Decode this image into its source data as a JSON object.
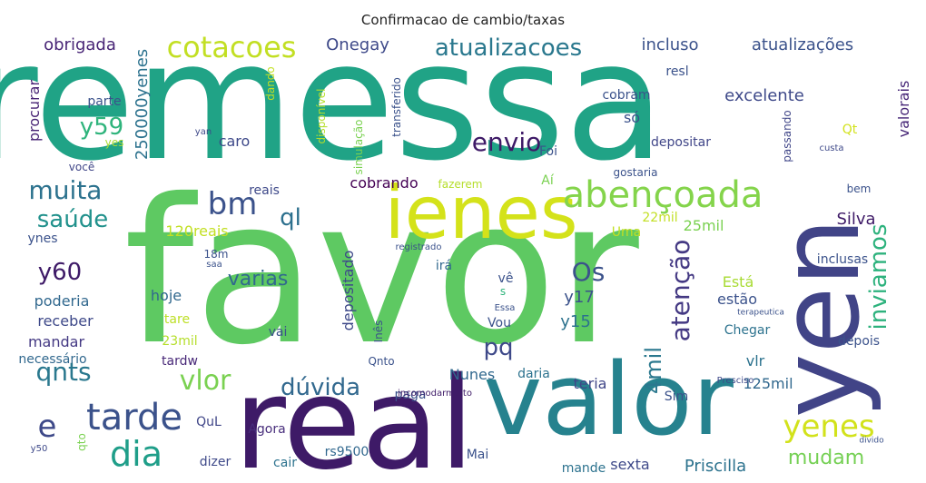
{
  "title": "Confirmacao de cambio/taxas",
  "words": [
    {
      "text": "remessa",
      "weight": 180,
      "color": "#20a386",
      "rotate": 0
    },
    {
      "text": "favor",
      "weight": 220,
      "color": "#5ec962",
      "rotate": 0
    },
    {
      "text": "real",
      "weight": 140,
      "color": "#3e1a67",
      "rotate": 0
    },
    {
      "text": "valor",
      "weight": 110,
      "color": "#26828e",
      "rotate": 0
    },
    {
      "text": "yen",
      "weight": 120,
      "color": "#414487",
      "rotate": -90
    },
    {
      "text": "ienes",
      "weight": 80,
      "color": "#d4e21a",
      "rotate": 0
    },
    {
      "text": "abençoada",
      "weight": 40,
      "color": "#84d44b",
      "rotate": 0
    },
    {
      "text": "cotacoes",
      "weight": 32,
      "color": "#c2df23",
      "rotate": 0
    },
    {
      "text": "atualizacoes",
      "weight": 26,
      "color": "#2a788e",
      "rotate": 0
    },
    {
      "text": "envio",
      "weight": 28,
      "color": "#3e1a67",
      "rotate": 0
    },
    {
      "text": "bm",
      "weight": 34,
      "color": "#3b528b",
      "rotate": 0
    },
    {
      "text": "muita",
      "weight": 28,
      "color": "#2c728e",
      "rotate": 0
    },
    {
      "text": "saúde",
      "weight": 26,
      "color": "#21918c",
      "rotate": 0
    },
    {
      "text": "y59",
      "weight": 26,
      "color": "#2fb47c",
      "rotate": 0
    },
    {
      "text": "y60",
      "weight": 26,
      "color": "#3e1a67",
      "rotate": 0
    },
    {
      "text": "ql",
      "weight": 26,
      "color": "#2d708e",
      "rotate": 0
    },
    {
      "text": "varias",
      "weight": 22,
      "color": "#31688e",
      "rotate": 0
    },
    {
      "text": "Os",
      "weight": 28,
      "color": "#3b528b",
      "rotate": 0
    },
    {
      "text": "pq",
      "weight": 26,
      "color": "#3e4989",
      "rotate": 0
    },
    {
      "text": "atenção",
      "weight": 28,
      "color": "#443983",
      "rotate": -90
    },
    {
      "text": "inviamos",
      "weight": 26,
      "color": "#2db27d",
      "rotate": -90
    },
    {
      "text": "qnts",
      "weight": 28,
      "color": "#2a788e",
      "rotate": 0
    },
    {
      "text": "vlor",
      "weight": 30,
      "color": "#7ad151",
      "rotate": 0
    },
    {
      "text": "dúvida",
      "weight": 26,
      "color": "#31688e",
      "rotate": 0
    },
    {
      "text": "tarde",
      "weight": 40,
      "color": "#3b528b",
      "rotate": 0
    },
    {
      "text": "e",
      "weight": 34,
      "color": "#3e4989",
      "rotate": 0
    },
    {
      "text": "dia",
      "weight": 38,
      "color": "#1f9e89",
      "rotate": 0
    },
    {
      "text": "yenes",
      "weight": 34,
      "color": "#d2e21b",
      "rotate": 0
    },
    {
      "text": "mudam",
      "weight": 22,
      "color": "#75d054",
      "rotate": 0
    },
    {
      "text": "4mil",
      "weight": 24,
      "color": "#2a788e",
      "rotate": -90
    },
    {
      "text": "obrigada",
      "weight": 18,
      "color": "#482576",
      "rotate": 0
    },
    {
      "text": "Onegay",
      "weight": 18,
      "color": "#3e4989",
      "rotate": 0
    },
    {
      "text": "incluso",
      "weight": 18,
      "color": "#3b528b",
      "rotate": 0
    },
    {
      "text": "atualizações",
      "weight": 18,
      "color": "#3b528b",
      "rotate": 0
    },
    {
      "text": "valorais",
      "weight": 16,
      "color": "#482878",
      "rotate": -90
    },
    {
      "text": "excelente",
      "weight": 18,
      "color": "#3e4989",
      "rotate": 0
    },
    {
      "text": "procurar",
      "weight": 16,
      "color": "#482475",
      "rotate": -90
    },
    {
      "text": "250000yenes",
      "weight": 18,
      "color": "#2c728e",
      "rotate": -90
    },
    {
      "text": "caro",
      "weight": 16,
      "color": "#3e4989",
      "rotate": 0
    },
    {
      "text": "cobrando",
      "weight": 16,
      "color": "#440154",
      "rotate": 0
    },
    {
      "text": "reais",
      "weight": 14,
      "color": "#3e4989",
      "rotate": 0
    },
    {
      "text": "120reais",
      "weight": 16,
      "color": "#c2df23",
      "rotate": 0
    },
    {
      "text": "Silva",
      "weight": 18,
      "color": "#3e1a67",
      "rotate": 0
    },
    {
      "text": "25mil",
      "weight": 16,
      "color": "#7ad151",
      "rotate": 0
    },
    {
      "text": "hoje",
      "weight": 16,
      "color": "#31688e",
      "rotate": 0
    },
    {
      "text": "poderia",
      "weight": 16,
      "color": "#31688e",
      "rotate": 0
    },
    {
      "text": "receber",
      "weight": 16,
      "color": "#3e4989",
      "rotate": 0
    },
    {
      "text": "mandar",
      "weight": 16,
      "color": "#443983",
      "rotate": 0
    },
    {
      "text": "tare",
      "weight": 14,
      "color": "#bddf26",
      "rotate": 0
    },
    {
      "text": "23mil",
      "weight": 14,
      "color": "#b5de2b",
      "rotate": 0
    },
    {
      "text": "tardw",
      "weight": 14,
      "color": "#482878",
      "rotate": 0
    },
    {
      "text": "estão",
      "weight": 16,
      "color": "#3b528b",
      "rotate": 0
    },
    {
      "text": "Está",
      "weight": 16,
      "color": "#a8db34",
      "rotate": 0
    },
    {
      "text": "y17",
      "weight": 18,
      "color": "#3b528b",
      "rotate": 0
    },
    {
      "text": "y15",
      "weight": 18,
      "color": "#2c728e",
      "rotate": 0
    },
    {
      "text": "depositado",
      "weight": 16,
      "color": "#3e4989",
      "rotate": -90
    },
    {
      "text": "irá",
      "weight": 14,
      "color": "#31688e",
      "rotate": 0
    },
    {
      "text": "Nunes",
      "weight": 16,
      "color": "#31688e",
      "rotate": 0
    },
    {
      "text": "paga",
      "weight": 14,
      "color": "#3b528b",
      "rotate": 0
    },
    {
      "text": "teria",
      "weight": 16,
      "color": "#404688",
      "rotate": 0
    },
    {
      "text": "vlr",
      "weight": 16,
      "color": "#2c728e",
      "rotate": 0
    },
    {
      "text": "125mil",
      "weight": 16,
      "color": "#31688e",
      "rotate": 0
    },
    {
      "text": "QuL",
      "weight": 14,
      "color": "#404688",
      "rotate": 0
    },
    {
      "text": "Agora",
      "weight": 14,
      "color": "#472d7b",
      "rotate": 0
    },
    {
      "text": "rs9500",
      "weight": 14,
      "color": "#31688e",
      "rotate": 0
    },
    {
      "text": "cair",
      "weight": 14,
      "color": "#2c728e",
      "rotate": 0
    },
    {
      "text": "dizer",
      "weight": 14,
      "color": "#3e4989",
      "rotate": 0
    },
    {
      "text": "Mai",
      "weight": 14,
      "color": "#3b528b",
      "rotate": 0
    },
    {
      "text": "sexta",
      "weight": 16,
      "color": "#3e4989",
      "rotate": 0
    },
    {
      "text": "Priscilla",
      "weight": 18,
      "color": "#2c728e",
      "rotate": 0
    },
    {
      "text": "mande",
      "weight": 14,
      "color": "#2c728e",
      "rotate": 0
    },
    {
      "text": "só",
      "weight": 16,
      "color": "#3b528b",
      "rotate": 0
    },
    {
      "text": "cobram",
      "weight": 14,
      "color": "#3b528b",
      "rotate": 0
    },
    {
      "text": "depositar",
      "weight": 14,
      "color": "#404688",
      "rotate": 0
    },
    {
      "text": "parte",
      "weight": 14,
      "color": "#3b528b",
      "rotate": 0
    },
    {
      "text": "você",
      "weight": 12,
      "color": "#404688",
      "rotate": 0
    },
    {
      "text": "yes",
      "weight": 12,
      "color": "#a8db34",
      "rotate": 0
    },
    {
      "text": "fazerem",
      "weight": 12,
      "color": "#b5de2b",
      "rotate": 0
    },
    {
      "text": "Aí",
      "weight": 14,
      "color": "#7ad151",
      "rotate": 0
    },
    {
      "text": "Foi",
      "weight": 14,
      "color": "#3b528b",
      "rotate": 0
    },
    {
      "text": "Uma",
      "weight": 14,
      "color": "#c2df23",
      "rotate": 0
    },
    {
      "text": "22mil",
      "weight": 14,
      "color": "#c2df23",
      "rotate": 0
    },
    {
      "text": "gostaria",
      "weight": 12,
      "color": "#3b528b",
      "rotate": 0
    },
    {
      "text": "bem",
      "weight": 12,
      "color": "#3b528b",
      "rotate": 0
    },
    {
      "text": "inclusas",
      "weight": 14,
      "color": "#3b528b",
      "rotate": 0
    },
    {
      "text": "Chegar",
      "weight": 14,
      "color": "#2c728e",
      "rotate": 0
    },
    {
      "text": "depois",
      "weight": 14,
      "color": "#3b528b",
      "rotate": 0
    },
    {
      "text": "vai",
      "weight": 14,
      "color": "#3b528b",
      "rotate": 0
    },
    {
      "text": "necessário",
      "weight": 14,
      "color": "#31688e",
      "rotate": 0
    },
    {
      "text": "ynes",
      "weight": 14,
      "color": "#3b528b",
      "rotate": 0
    },
    {
      "text": "Qnto",
      "weight": 12,
      "color": "#3b528b",
      "rotate": 0
    },
    {
      "text": "daria",
      "weight": 14,
      "color": "#2c728e",
      "rotate": 0
    },
    {
      "text": "Sim",
      "weight": 14,
      "color": "#3b528b",
      "rotate": 0
    },
    {
      "text": "Vou",
      "weight": 14,
      "color": "#3b528b",
      "rotate": 0
    },
    {
      "text": "vê",
      "weight": 14,
      "color": "#3b528b",
      "rotate": 0
    },
    {
      "text": "Qt",
      "weight": 14,
      "color": "#d2e21b",
      "rotate": 0
    },
    {
      "text": "resl",
      "weight": 14,
      "color": "#3b528b",
      "rotate": 0
    },
    {
      "text": "passando",
      "weight": 12,
      "color": "#404688",
      "rotate": -90
    },
    {
      "text": "custa",
      "weight": 10,
      "color": "#3e4989",
      "rotate": 0
    },
    {
      "text": "simulação",
      "weight": 12,
      "color": "#7ad151",
      "rotate": -90
    },
    {
      "text": "transferido",
      "weight": 12,
      "color": "#3b528b",
      "rotate": -90
    },
    {
      "text": "disponível",
      "weight": 12,
      "color": "#b5de2b",
      "rotate": -90
    },
    {
      "text": "dando",
      "weight": 12,
      "color": "#c2df23",
      "rotate": -90
    },
    {
      "text": "terapeutica",
      "weight": 9,
      "color": "#3b528b",
      "rotate": 0
    },
    {
      "text": "Presciso",
      "weight": 10,
      "color": "#3e4989",
      "rotate": 0
    },
    {
      "text": "incomodarmuito",
      "weight": 10,
      "color": "#3e1a67",
      "rotate": 0
    },
    {
      "text": "divido",
      "weight": 9,
      "color": "#3b528b",
      "rotate": 0
    },
    {
      "text": "registrado",
      "weight": 10,
      "color": "#3b528b",
      "rotate": 0
    },
    {
      "text": "Essa",
      "weight": 10,
      "color": "#3b528b",
      "rotate": 0
    },
    {
      "text": "18m",
      "weight": 12,
      "color": "#3b528b",
      "rotate": 0
    },
    {
      "text": "saa",
      "weight": 10,
      "color": "#3b528b",
      "rotate": 0
    },
    {
      "text": "yan",
      "weight": 10,
      "color": "#3e4989",
      "rotate": 0
    },
    {
      "text": "y50",
      "weight": 10,
      "color": "#3e4989",
      "rotate": 0
    },
    {
      "text": "qto",
      "weight": 12,
      "color": "#7ad151",
      "rotate": -90
    },
    {
      "text": "Inês",
      "weight": 12,
      "color": "#3b528b",
      "rotate": -90
    },
    {
      "text": "s",
      "weight": 12,
      "color": "#2fb47c",
      "rotate": 0
    }
  ]
}
